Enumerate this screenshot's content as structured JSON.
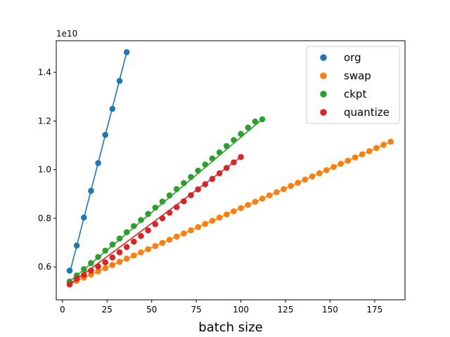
{
  "chart_data": {
    "type": "scatter",
    "xlabel": "batch size",
    "ylabel": "",
    "y_offset_label": "1e10",
    "xlim": [
      -3.5,
      192
    ],
    "ylim": [
      0.465,
      1.53
    ],
    "x_ticks": [
      0,
      25,
      50,
      75,
      100,
      125,
      150,
      175
    ],
    "y_ticks": [
      0.6,
      0.8,
      1.0,
      1.2,
      1.4
    ],
    "y_tick_labels": [
      "0.6",
      "0.8",
      "1.0",
      "1.2",
      "1.4"
    ],
    "legend_position": "top-right",
    "series": [
      {
        "name": "org",
        "color": "#1f77b4",
        "x": [
          4,
          8,
          12,
          16,
          20,
          24,
          28,
          32,
          36
        ],
        "y": [
          0.585,
          0.688,
          0.803,
          0.913,
          1.027,
          1.143,
          1.25,
          1.365,
          1.483
        ],
        "fit": {
          "x": [
            4,
            36
          ],
          "y": [
            0.574,
            1.483
          ]
        }
      },
      {
        "name": "swap",
        "color": "#ff7f0e",
        "x": [
          4,
          8,
          12,
          16,
          20,
          24,
          28,
          32,
          36,
          40,
          44,
          48,
          52,
          56,
          60,
          64,
          68,
          72,
          76,
          80,
          84,
          88,
          92,
          96,
          100,
          104,
          108,
          112,
          116,
          120,
          124,
          128,
          132,
          136,
          140,
          144,
          148,
          152,
          156,
          160,
          164,
          168,
          172,
          176,
          180,
          184
        ],
        "y": [
          0.53,
          0.543,
          0.556,
          0.569,
          0.582,
          0.595,
          0.608,
          0.621,
          0.634,
          0.647,
          0.66,
          0.673,
          0.686,
          0.699,
          0.712,
          0.725,
          0.738,
          0.751,
          0.764,
          0.777,
          0.79,
          0.803,
          0.816,
          0.829,
          0.842,
          0.855,
          0.868,
          0.881,
          0.894,
          0.907,
          0.92,
          0.933,
          0.946,
          0.959,
          0.972,
          0.985,
          0.998,
          1.011,
          1.024,
          1.037,
          1.05,
          1.063,
          1.076,
          1.089,
          1.102,
          1.115
        ],
        "fit": {
          "x": [
            4,
            184
          ],
          "y": [
            0.53,
            1.115
          ]
        }
      },
      {
        "name": "ckpt",
        "color": "#2ca02c",
        "x": [
          4,
          8,
          12,
          16,
          20,
          24,
          28,
          32,
          36,
          40,
          44,
          48,
          52,
          56,
          60,
          64,
          68,
          72,
          76,
          80,
          84,
          88,
          92,
          96,
          100,
          104,
          108,
          112
        ],
        "y": [
          0.54,
          0.565,
          0.591,
          0.616,
          0.641,
          0.667,
          0.692,
          0.717,
          0.743,
          0.768,
          0.793,
          0.818,
          0.844,
          0.869,
          0.894,
          0.92,
          0.945,
          0.97,
          0.996,
          1.021,
          1.046,
          1.071,
          1.097,
          1.122,
          1.147,
          1.173,
          1.198,
          1.207
        ],
        "fit": {
          "x": [
            4,
            112
          ],
          "y": [
            0.54,
            1.207
          ]
        }
      },
      {
        "name": "quantize",
        "color": "#d62728",
        "x": [
          4,
          8,
          12,
          16,
          20,
          24,
          28,
          32,
          36,
          40,
          44,
          48,
          52,
          56,
          60,
          64,
          68,
          72,
          76,
          80,
          84,
          88,
          92,
          96,
          100
        ],
        "y": [
          0.528,
          0.552,
          0.567,
          0.585,
          0.602,
          0.619,
          0.639,
          0.66,
          0.682,
          0.704,
          0.727,
          0.75,
          0.776,
          0.8,
          0.823,
          0.846,
          0.87,
          0.895,
          0.919,
          0.94,
          0.962,
          0.985,
          1.007,
          1.03,
          1.052
        ],
        "fit": {
          "x": [
            4,
            100
          ],
          "y": [
            0.528,
            1.052
          ]
        }
      }
    ]
  }
}
